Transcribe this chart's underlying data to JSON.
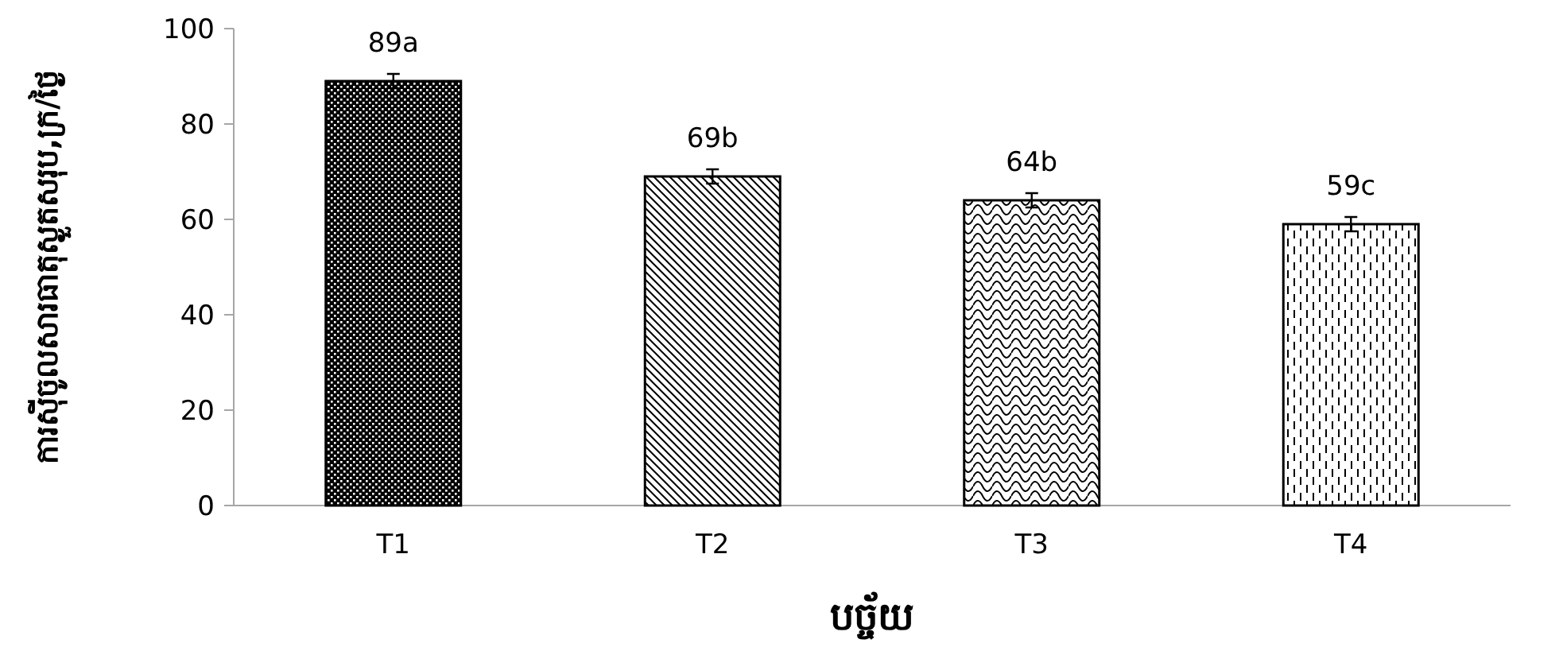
{
  "chart_data": {
    "type": "bar",
    "xlabel": "បច្ច័យ",
    "ylabel": "ការស៊ីចូលសារធាតុស្ងួតសរុប,ក្រ/ថ្ងៃ",
    "categories": [
      "T1",
      "T2",
      "T3",
      "T4"
    ],
    "values": [
      89,
      69,
      64,
      59
    ],
    "errors": [
      1.5,
      1.5,
      1.5,
      1.5
    ],
    "value_labels": [
      "89a",
      "69b",
      "64b",
      "59c"
    ],
    "ylim": [
      0,
      100
    ],
    "yticks": [
      0,
      20,
      40,
      60,
      80,
      100
    ],
    "grid": false
  }
}
